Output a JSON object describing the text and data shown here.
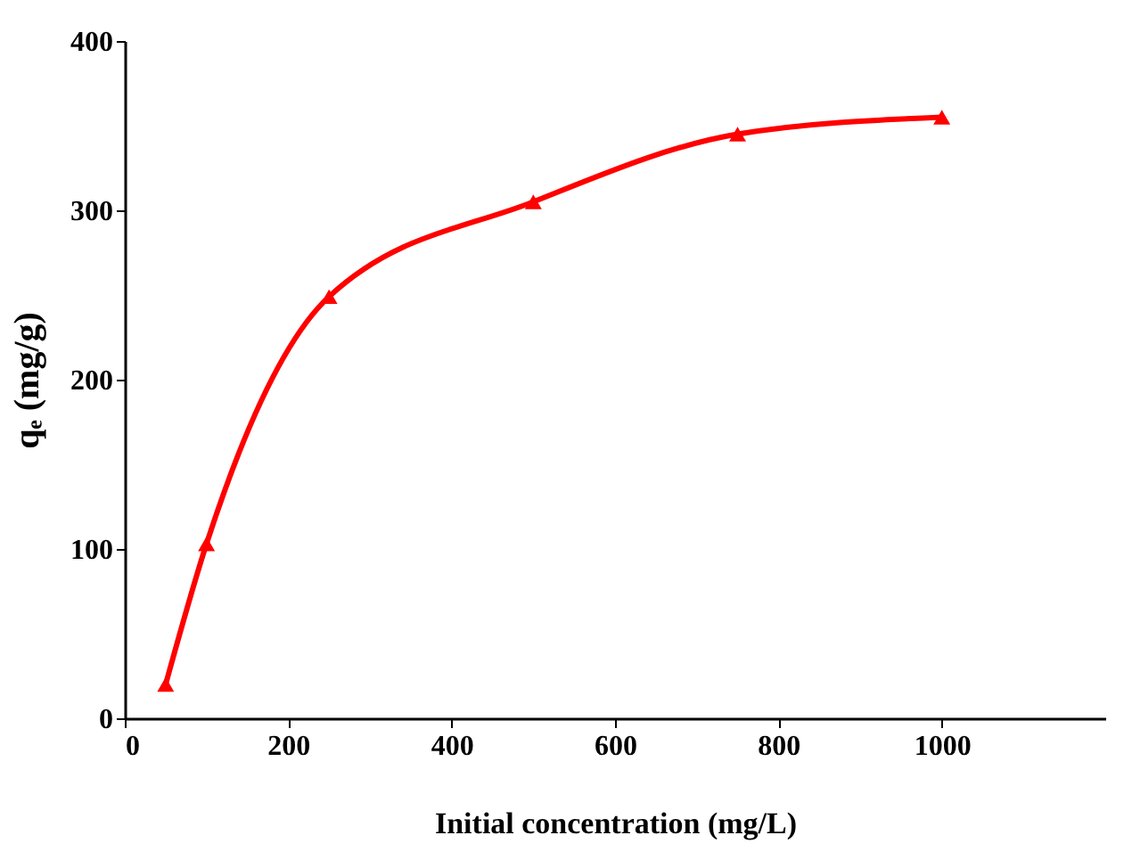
{
  "chart_data": {
    "type": "line",
    "xlabel": "Initial concentration (mg/L)",
    "ylabel": "qₑ (mg/g)",
    "x": [
      50,
      100,
      250,
      500,
      750,
      1000
    ],
    "series": [
      {
        "color": "#ff0000",
        "values": [
          20,
          103,
          249,
          305,
          345,
          355
        ]
      }
    ],
    "xlim": [
      0,
      1200
    ],
    "xticks": [
      0,
      200,
      400,
      600,
      800,
      1000
    ],
    "ylim": [
      0,
      400
    ],
    "yticks": [
      0,
      100,
      200,
      300,
      400
    ],
    "marker": "triangle",
    "line_style": "solid",
    "grid": false,
    "legend": false
  }
}
